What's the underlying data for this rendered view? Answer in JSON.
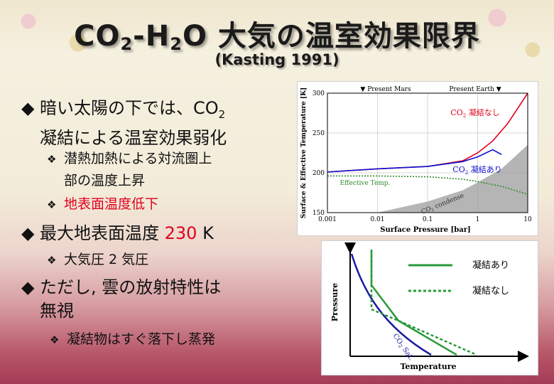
{
  "slide": {
    "title_prefix": "CO",
    "title_sub1": "2",
    "title_mid": "-H",
    "title_sub2": "2",
    "title_suffix": "O 大気の温室効果限界",
    "subtitle": "(Kasting 1991)"
  },
  "bullets": {
    "b1_line1": "暗い太陽の下では、CO",
    "b1_line1_sub": "2",
    "b1_line2": "凝結による温室効果弱化",
    "s1_line1": "潜熱加熱による対流圏上",
    "s1_line2": "部の温度上昇",
    "s2": "地表面温度低下",
    "b2_text": "最大地表面温度 ",
    "b2_value": "230",
    "b2_unit": " K",
    "s3": "大気圧 2 気圧",
    "b3_line1": "ただし, 雲の放射特性は",
    "b3_line2": "無視",
    "s4": "凝結物はすぐ落下し蒸発",
    "bullet_symbol": "◆",
    "sub_symbol": "❖"
  },
  "chart_data": [
    {
      "type": "line",
      "xscale": "log",
      "xlim": [
        0.001,
        10
      ],
      "ylim": [
        150,
        300
      ],
      "xticks": [
        "0.001",
        "0.01",
        "0.1",
        "1",
        "10"
      ],
      "yticks": [
        "150",
        "200",
        "250",
        "300"
      ],
      "xlabel": "Surface Pressure [bar]",
      "ylabel": "Surface & Effective Temperature [K]",
      "top_markers": [
        {
          "label": "▼ Present Mars",
          "x": 0.006
        },
        {
          "label": "Present Earth ▼",
          "x": 1
        }
      ],
      "series": [
        {
          "name": "CO2 凝結なし",
          "name_prefix": "CO",
          "name_sub": "2",
          "name_rest": " 凝結なし",
          "color": "#e0001b",
          "x": [
            0.001,
            0.01,
            0.1,
            0.5,
            1,
            2,
            4,
            10
          ],
          "y": [
            201,
            205,
            208,
            215,
            225,
            240,
            262,
            300
          ]
        },
        {
          "name": "CO2 凝結あり",
          "name_prefix": "CO",
          "name_sub": "2",
          "name_rest": " 凝結あり",
          "color": "#1010d0",
          "x": [
            0.001,
            0.01,
            0.1,
            0.5,
            1,
            2,
            3
          ],
          "y": [
            201,
            205,
            208,
            214,
            220,
            229,
            223
          ]
        },
        {
          "name": "Effective Temp.",
          "color": "#2f8a2f",
          "dashed": true,
          "x": [
            0.001,
            0.01,
            0.1,
            0.5,
            1,
            3,
            10
          ],
          "y": [
            196,
            196,
            195,
            192,
            189,
            183,
            173
          ]
        }
      ],
      "region": {
        "name": "CO2 condense",
        "name_prefix": "CO",
        "name_sub": "2",
        "name_rest": " condense",
        "color": "#b5b5b5",
        "x": [
          0.001,
          0.01,
          0.1,
          0.5,
          1,
          3,
          10
        ],
        "y": [
          135,
          150,
          164,
          178,
          188,
          205,
          235
        ]
      }
    },
    {
      "type": "line",
      "xlabel": "Temperature",
      "ylabel": "Pressure",
      "legend": [
        {
          "label": "凝結あり",
          "color": "#2a9a3a",
          "dashed": false
        },
        {
          "label": "凝結なし",
          "color": "#2a9a3a",
          "dashed": true
        }
      ],
      "curve_label": "CO2 Sat.",
      "curve_label_prefix": "CO",
      "curve_label_sub": "2",
      "curve_label_rest": " Sat."
    }
  ]
}
